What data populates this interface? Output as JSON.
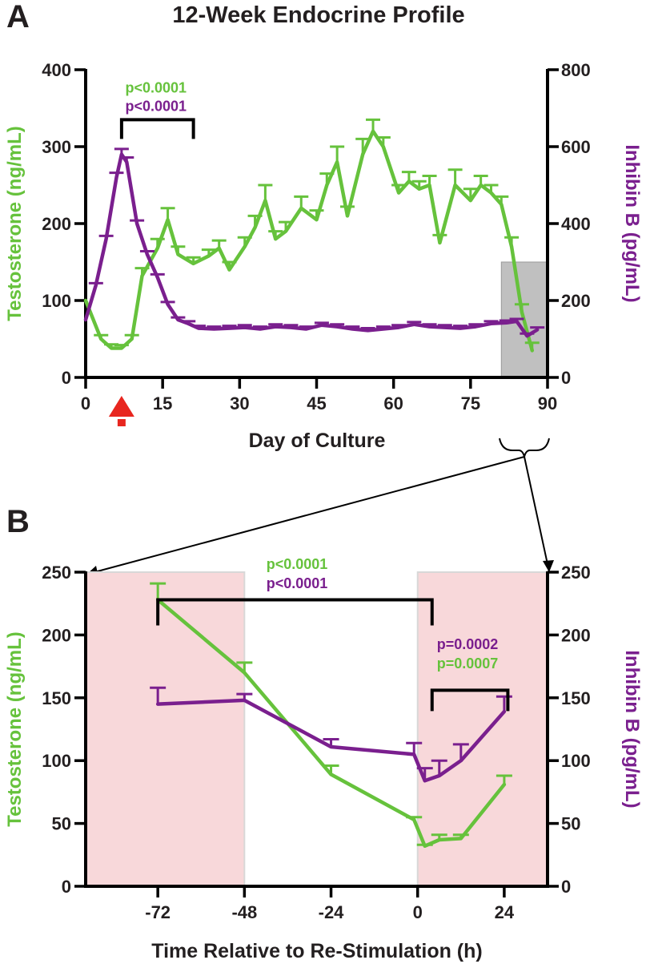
{
  "panels": {
    "a": {
      "letter": "A"
    },
    "b": {
      "letter": "B"
    }
  },
  "colors": {
    "testosterone": "#66c23c",
    "inhibin": "#7a1f8e",
    "axis": "#000000",
    "stim_marker": "#e8261f",
    "zoom_box": "#c0c0c0",
    "restim_window": "#f8d8da"
  },
  "chart_data": [
    {
      "type": "line",
      "panel": "A",
      "title": "12-Week Endocrine Profile",
      "xlabel": "Day of Culture",
      "ylabel": "Testosterone (ng/mL)",
      "y2label": "Inhibin B (pg/mL)",
      "xlim": [
        0,
        90
      ],
      "ylim": [
        0,
        400
      ],
      "y2lim": [
        0,
        800
      ],
      "xticks": [
        "0",
        "15",
        "30",
        "45",
        "60",
        "75",
        "90"
      ],
      "yticks": [
        "0",
        "100",
        "200",
        "300",
        "400"
      ],
      "y2ticks": [
        "0",
        "200",
        "400",
        "600",
        "800"
      ],
      "stimulation_marker_day": 7,
      "zoom_region_days": [
        81,
        90
      ],
      "zoom_region_height_ng_ml": 150,
      "bracket": {
        "from_day": 7,
        "to_day": 21,
        "at_ng_ml": 335,
        "labels": [
          "p<0.0001",
          "p<0.0001"
        ]
      },
      "series": [
        {
          "name": "Testosterone",
          "axis": "left",
          "x": [
            0,
            3,
            5,
            7,
            9,
            11,
            14,
            16,
            18,
            21,
            24,
            26,
            28,
            31,
            33,
            35,
            37,
            39,
            42,
            45,
            47,
            49,
            51,
            54,
            56,
            58,
            61,
            63,
            65,
            67,
            69,
            72,
            75,
            77,
            79,
            81,
            83,
            85,
            87
          ],
          "values": [
            100,
            50,
            38,
            38,
            50,
            132,
            168,
            205,
            160,
            148,
            158,
            168,
            140,
            170,
            195,
            230,
            180,
            190,
            220,
            205,
            250,
            280,
            210,
            290,
            320,
            300,
            240,
            255,
            245,
            250,
            175,
            250,
            230,
            250,
            240,
            225,
            170,
            85,
            35
          ],
          "error": [
            0,
            5,
            5,
            4,
            5,
            10,
            12,
            15,
            10,
            8,
            8,
            10,
            10,
            12,
            15,
            20,
            10,
            12,
            15,
            12,
            15,
            20,
            12,
            20,
            15,
            12,
            10,
            12,
            10,
            12,
            10,
            20,
            15,
            12,
            10,
            10,
            12,
            10,
            10
          ]
        },
        {
          "name": "Inhibin B",
          "axis": "right",
          "x": [
            0,
            2,
            4,
            6,
            7,
            8,
            10,
            12,
            14,
            16,
            18,
            20,
            22,
            25,
            28,
            31,
            34,
            37,
            40,
            43,
            46,
            49,
            52,
            55,
            58,
            61,
            64,
            67,
            70,
            73,
            76,
            79,
            82,
            84,
            86,
            88
          ],
          "values": [
            150,
            240,
            360,
            520,
            580,
            560,
            400,
            320,
            260,
            190,
            150,
            140,
            128,
            126,
            128,
            130,
            126,
            132,
            130,
            126,
            136,
            132,
            126,
            122,
            126,
            130,
            138,
            132,
            130,
            128,
            132,
            140,
            142,
            146,
            108,
            124
          ],
          "error": [
            0,
            5,
            8,
            12,
            14,
            12,
            8,
            8,
            8,
            6,
            6,
            6,
            6,
            6,
            6,
            6,
            6,
            6,
            6,
            6,
            6,
            6,
            6,
            6,
            6,
            6,
            6,
            6,
            6,
            6,
            6,
            6,
            6,
            6,
            6,
            6
          ]
        }
      ]
    },
    {
      "type": "line",
      "panel": "B",
      "xlabel": "Time Relative to Re-Stimulation (h)",
      "ylabel": "Testosterone (ng/mL)",
      "y2label": "Inhibin B (pg/mL)",
      "xlim": [
        -92,
        36
      ],
      "ylim": [
        0,
        250
      ],
      "y2lim": [
        0,
        250
      ],
      "xticks": [
        "-72",
        "-48",
        "-24",
        "0",
        "24"
      ],
      "yticks": [
        "0",
        "50",
        "100",
        "150",
        "200",
        "250"
      ],
      "y2ticks": [
        "0",
        "50",
        "100",
        "150",
        "200",
        "250"
      ],
      "shaded_windows_h": [
        [
          -92,
          -48
        ],
        [
          0,
          36
        ]
      ],
      "brackets": [
        {
          "from_h": -72,
          "to_h": 4,
          "at": 228,
          "labels": [
            "p<0.0001",
            "p<0.0001"
          ]
        },
        {
          "from_h": 4,
          "to_h": 25,
          "at": 156,
          "labels": [
            "p=0.0002",
            "p=0.0007"
          ]
        }
      ],
      "series": [
        {
          "name": "Testosterone",
          "axis": "left",
          "x": [
            -72,
            -48,
            -24,
            -1,
            2,
            6,
            12,
            24
          ],
          "values": [
            228,
            170,
            89,
            53,
            32,
            37,
            38,
            81
          ],
          "error": [
            13,
            8,
            7,
            2,
            1,
            4,
            3,
            7
          ]
        },
        {
          "name": "Inhibin B",
          "axis": "right",
          "x": [
            -72,
            -48,
            -24,
            -1,
            2,
            6,
            12,
            24
          ],
          "values": [
            145,
            148,
            111,
            105,
            84,
            88,
            100,
            139
          ],
          "error": [
            13,
            5,
            6,
            9,
            10,
            12,
            13,
            12
          ]
        }
      ]
    }
  ]
}
